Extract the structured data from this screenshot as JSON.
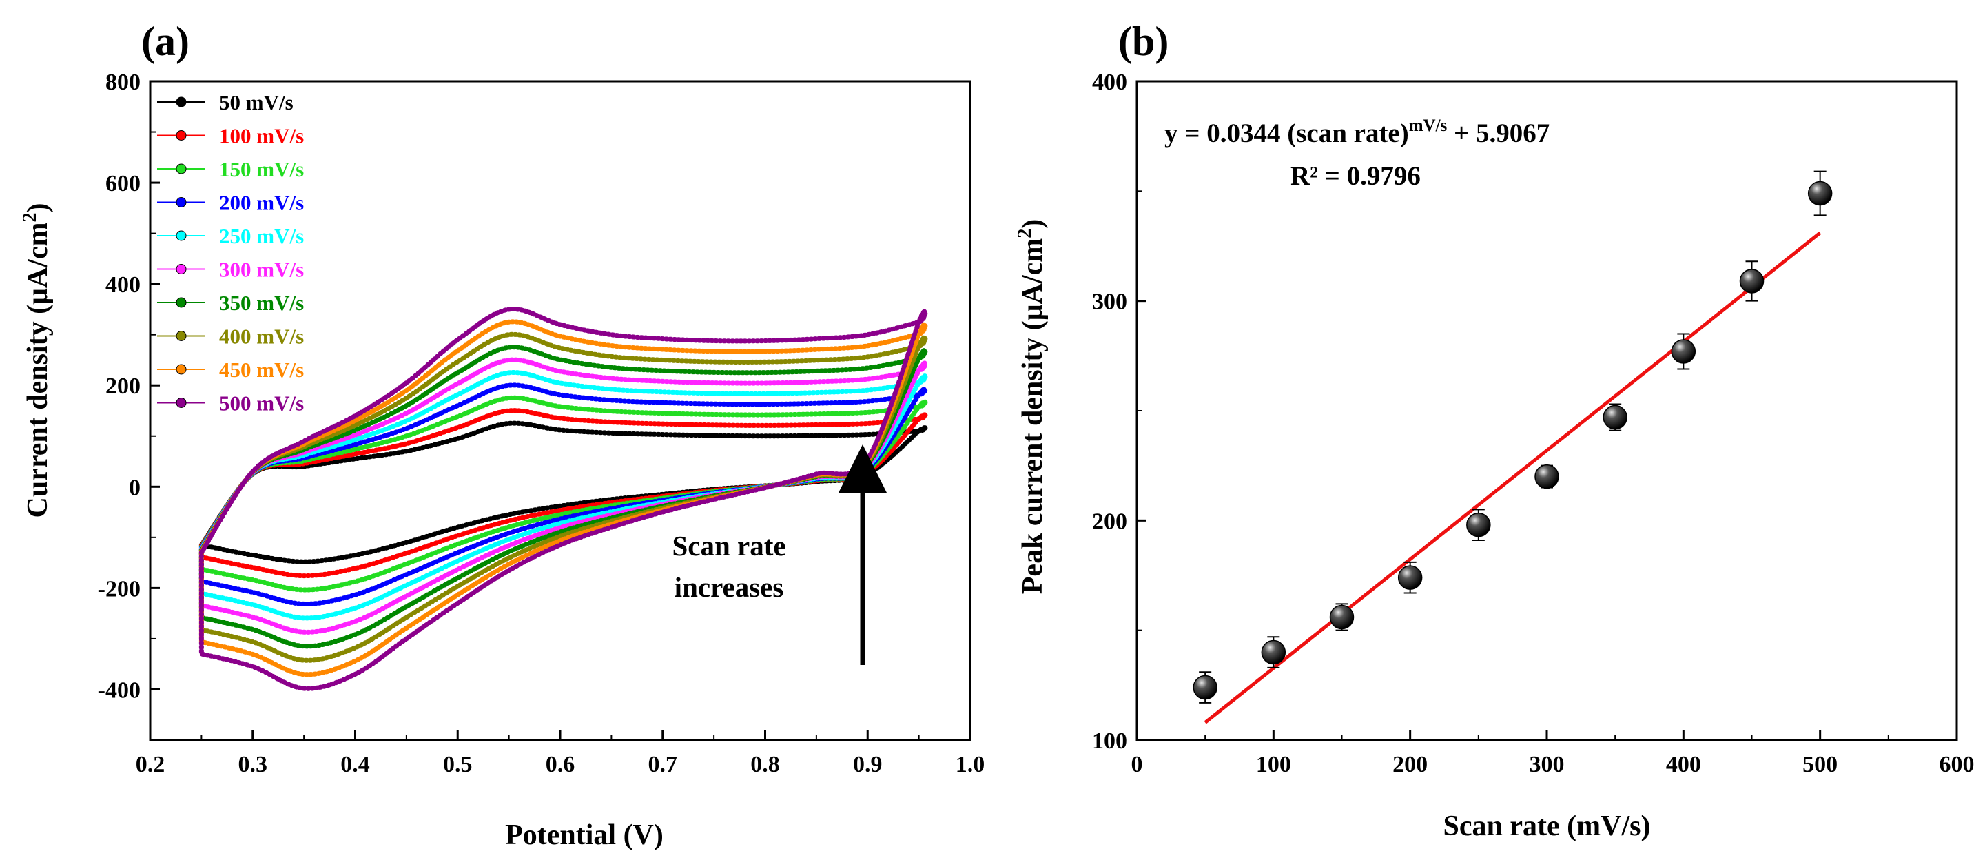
{
  "chart_data": [
    {
      "panel": "(a)",
      "type": "line",
      "xlabel": "Potential (V)",
      "ylabel_main": "Current density (μA/cm",
      "ylabel_sup": "2",
      "ylabel_close": ")",
      "xlim": [
        0.2,
        1.0
      ],
      "ylim": [
        -500,
        800
      ],
      "xticks": [
        "0.2",
        "0.3",
        "0.4",
        "0.5",
        "0.6",
        "0.7",
        "0.8",
        "0.9",
        "1.0"
      ],
      "yticks": [
        "-400",
        "-200",
        "0",
        "200",
        "400",
        "600",
        "800"
      ],
      "grid": false,
      "legend_position": "top-left",
      "annotation": {
        "line1": "Scan rate",
        "line2": "increases",
        "arrow": "up"
      },
      "series": [
        {
          "name": "50 mV/s",
          "color": "#000000",
          "scan_rate": 50
        },
        {
          "name": "100 mV/s",
          "color": "#ff0000",
          "scan_rate": 100
        },
        {
          "name": "150 mV/s",
          "color": "#22dd22",
          "scan_rate": 150
        },
        {
          "name": "200 mV/s",
          "color": "#0000ff",
          "scan_rate": 200
        },
        {
          "name": "250 mV/s",
          "color": "#00ffff",
          "scan_rate": 250
        },
        {
          "name": "300 mV/s",
          "color": "#ff22ff",
          "scan_rate": 300
        },
        {
          "name": "350 mV/s",
          "color": "#008800",
          "scan_rate": 350
        },
        {
          "name": "400 mV/s",
          "color": "#888800",
          "scan_rate": 400
        },
        {
          "name": "450 mV/s",
          "color": "#ff8800",
          "scan_rate": 450
        },
        {
          "name": "500 mV/s",
          "color": "#8b008b",
          "scan_rate": 500
        }
      ],
      "curve_points": {
        "potential": [
          0.25,
          0.3,
          0.35,
          0.4,
          0.45,
          0.5,
          0.55,
          0.6,
          0.65,
          0.7,
          0.75,
          0.8,
          0.85,
          0.9,
          0.95
        ],
        "anodic_50": [
          -115,
          25,
          40,
          55,
          70,
          95,
          125,
          112,
          106,
          103,
          101,
          100,
          101,
          103,
          110
        ],
        "anodic_500": [
          -130,
          30,
          90,
          140,
          205,
          290,
          350,
          320,
          300,
          292,
          288,
          288,
          292,
          300,
          325
        ],
        "cathodic_50": [
          -115,
          -135,
          -148,
          -135,
          -110,
          -80,
          -55,
          -38,
          -25,
          -15,
          -5,
          2,
          10,
          25,
          110
        ],
        "cathodic_500": [
          -330,
          -355,
          -398,
          -370,
          -300,
          -230,
          -165,
          -115,
          -80,
          -50,
          -25,
          -2,
          25,
          55,
          325
        ]
      }
    },
    {
      "panel": "(b)",
      "type": "scatter",
      "xlabel": "Scan rate (mV/s)",
      "ylabel_main": "Peak current density (μA/cm",
      "ylabel_sup": "2",
      "ylabel_close": ")",
      "xlim": [
        0,
        600
      ],
      "ylim": [
        100,
        400
      ],
      "xticks": [
        "0",
        "100",
        "200",
        "300",
        "400",
        "500",
        "600"
      ],
      "yticks": [
        "100",
        "200",
        "300",
        "400"
      ],
      "grid": false,
      "x": [
        50,
        100,
        150,
        200,
        250,
        300,
        350,
        400,
        450,
        500
      ],
      "y": [
        124,
        140,
        156,
        174,
        198,
        220,
        247,
        277,
        309,
        349
      ],
      "error": [
        7,
        7,
        6,
        7,
        7,
        5,
        6,
        8,
        9,
        10
      ],
      "fit": {
        "slope": 0.0344,
        "intercept": 5.9067,
        "color": "#ee1111",
        "x_range": [
          50,
          500
        ],
        "y_range": [
          108,
          331
        ]
      },
      "equation": {
        "part1": "y = 0.0344 (scan rate)",
        "sup": "mV/s",
        "part2": " + 5.9067",
        "r2": "R² = 0.9796"
      }
    }
  ]
}
